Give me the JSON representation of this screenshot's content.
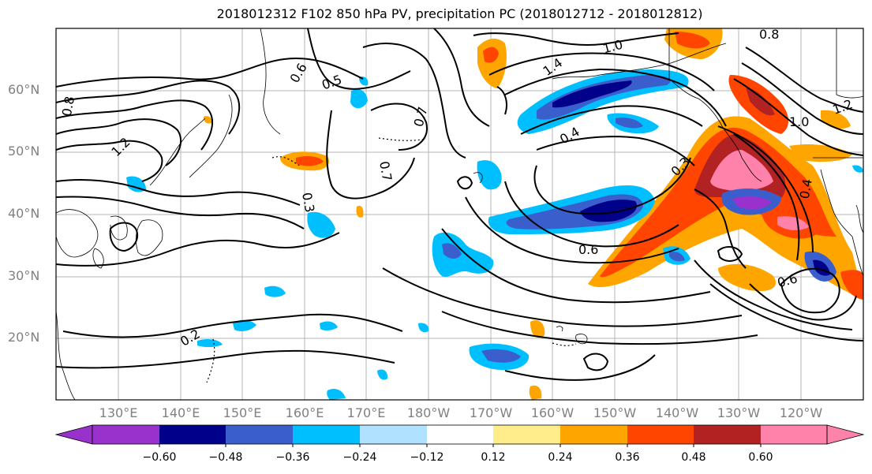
{
  "title": "2018012312 F102 850 hPa PV, precipitation PC (2018012712 - 2018012812)",
  "lat_labels": [
    "60°N",
    "50°N",
    "40°N",
    "30°N",
    "20°N"
  ],
  "lon_labels": [
    "130°E",
    "140°E",
    "150°E",
    "160°E",
    "170°E",
    "180°W",
    "170°W",
    "160°W",
    "150°W",
    "140°W",
    "130°W",
    "120°W"
  ],
  "colorbar": {
    "ticks": [
      "−0.60",
      "−0.48",
      "−0.36",
      "−0.24",
      "−0.12",
      "0.12",
      "0.24",
      "0.36",
      "0.48",
      "0.60"
    ],
    "colors": [
      "#9932cc",
      "#00008b",
      "#3a5fcd",
      "#00bfff",
      "#b0e2ff",
      "#ffffff",
      "#ffec8b",
      "#ffa500",
      "#ff4500",
      "#b22222",
      "#ff82ab"
    ]
  },
  "contour_labels": [
    "0.8",
    "1.2",
    "0.5",
    "0.7",
    "0.3",
    "0.6",
    "0.4",
    "1.4",
    "1.0",
    "0.3",
    "0.6",
    "0.7",
    "0.2",
    "0.6",
    "0.4",
    "1.2",
    "1.0",
    "0.8"
  ]
}
